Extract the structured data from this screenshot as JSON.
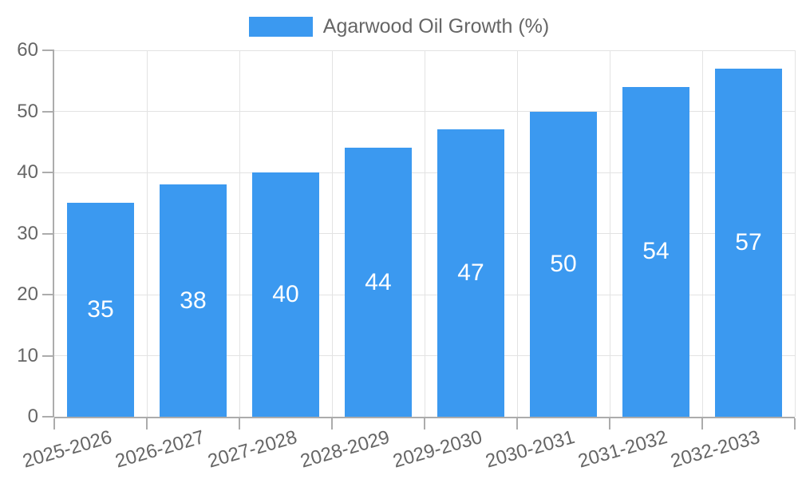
{
  "legend": {
    "label": "Agarwood Oil Growth (%)"
  },
  "colors": {
    "bar": "#3B99F0",
    "text": "#666666",
    "bar_label": "#FFFFFF",
    "grid": "#E3E3E3",
    "axis": "#ACACAC",
    "background": "#FFFFFF"
  },
  "chart_data": {
    "type": "bar",
    "title": "",
    "categories": [
      "2025-2026",
      "2026-2027",
      "2027-2028",
      "2028-2029",
      "2029-2030",
      "2030-2031",
      "2031-2032",
      "2032-2033"
    ],
    "series": [
      {
        "name": "Agarwood Oil Growth (%)",
        "values": [
          35,
          38,
          40,
          44,
          47,
          50,
          54,
          57
        ]
      }
    ],
    "bar_value_labels": [
      35,
      38,
      40,
      44,
      47,
      50,
      54,
      57
    ],
    "xlabel": "",
    "ylabel": "",
    "ylim": [
      0,
      60
    ],
    "yticks": [
      0,
      10,
      20,
      30,
      40,
      50,
      60
    ],
    "grid": true,
    "legend_position": "top-center",
    "x_label_rotation_deg": -16
  }
}
